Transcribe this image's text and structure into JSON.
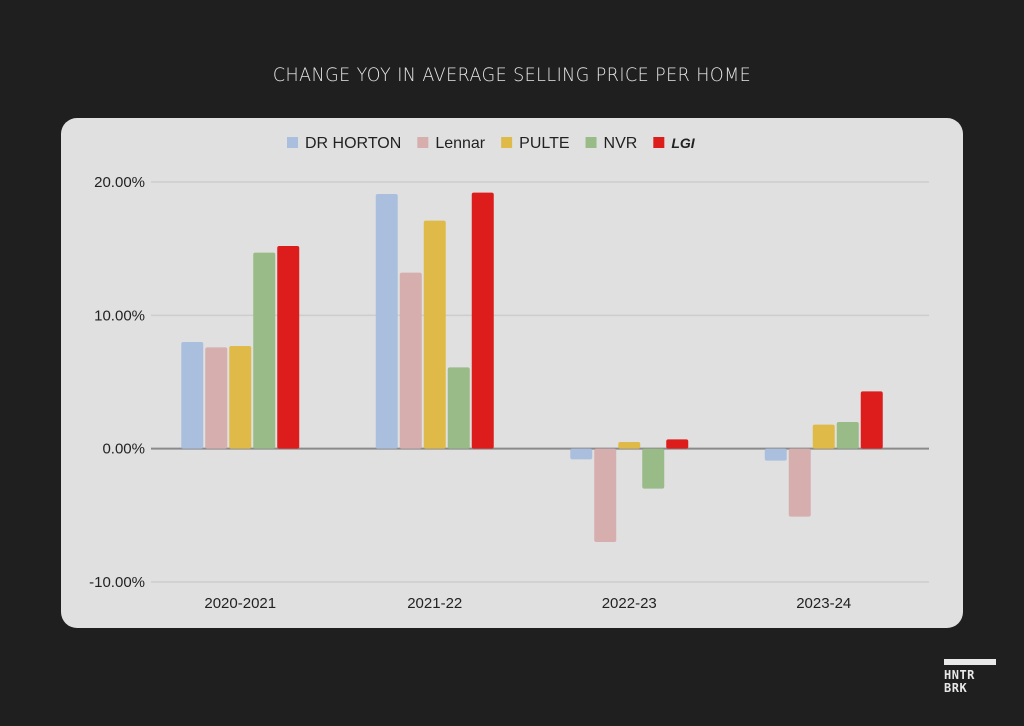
{
  "page": {
    "title": "CHANGE YOY IN AVERAGE SELLING PRICE PER HOME",
    "logo_line1": "HNTR",
    "logo_line2": "BRK"
  },
  "chart_data": {
    "type": "bar",
    "title": "CHANGE YOY IN AVERAGE SELLING PRICE PER HOME",
    "xlabel": "",
    "ylabel": "",
    "categories": [
      "2020-2021",
      "2021-22",
      "2022-23",
      "2023-24"
    ],
    "ylim": [
      -10,
      20
    ],
    "yticks": [
      20,
      10,
      0,
      -10
    ],
    "ytick_labels": [
      "20.00%",
      "10.00%",
      "0.00%",
      "-10.00%"
    ],
    "grid": true,
    "legend_position": "top",
    "series": [
      {
        "name": "DR HORTON",
        "color": "#aabfde",
        "values": [
          8.0,
          19.1,
          -0.8,
          -0.9
        ]
      },
      {
        "name": "Lennar",
        "color": "#d6aeae",
        "values": [
          7.6,
          13.2,
          -7.0,
          -5.1
        ]
      },
      {
        "name": "PULTE",
        "color": "#e0ba48",
        "values": [
          7.7,
          17.1,
          0.5,
          1.8
        ]
      },
      {
        "name": "NVR",
        "color": "#99bb88",
        "values": [
          14.7,
          6.1,
          -3.0,
          2.0
        ]
      },
      {
        "name": "LGI",
        "color": "#dd1c1c",
        "values": [
          15.2,
          19.2,
          0.7,
          4.3
        ],
        "bold_italic": true
      }
    ]
  }
}
